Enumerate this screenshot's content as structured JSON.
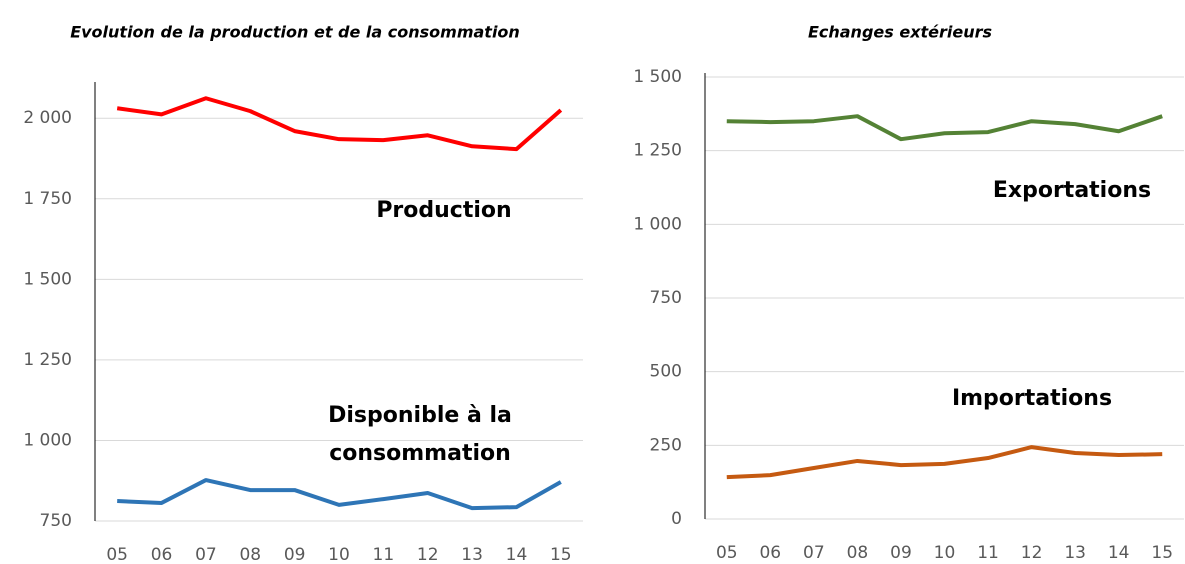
{
  "chart_data": [
    {
      "type": "line",
      "title": "Evolution de la production et de la consommation",
      "categories": [
        "05",
        "06",
        "07",
        "08",
        "09",
        "10",
        "11",
        "12",
        "13",
        "14",
        "15"
      ],
      "series": [
        {
          "name": "Production",
          "color": "#ff0000",
          "values": [
            2031,
            2012,
            2062,
            2022,
            1960,
            1935,
            1932,
            1947,
            1913,
            1904,
            2025
          ]
        },
        {
          "name": "Disponible à la consommation",
          "color": "#2e75b6",
          "values": [
            812,
            806,
            877,
            846,
            846,
            800,
            818,
            837,
            790,
            793,
            871
          ]
        }
      ],
      "ylim": [
        750,
        2100
      ],
      "yticks": [
        750,
        {
          "value": 1000,
          "label": "1 000"
        },
        {
          "value": 1250,
          "label": "1 250"
        },
        {
          "value": 1500,
          "label": "1 500"
        },
        {
          "value": 1750,
          "label": "1 750"
        },
        {
          "value": 2000,
          "label": "2 000"
        }
      ],
      "grid": true
    },
    {
      "type": "line",
      "title": "Echanges extérieurs",
      "categories": [
        "05",
        "06",
        "07",
        "08",
        "09",
        "10",
        "11",
        "12",
        "13",
        "14",
        "15"
      ],
      "series": [
        {
          "name": "Exportations",
          "color": "#548235",
          "values": [
            1350,
            1347,
            1350,
            1367,
            1289,
            1309,
            1313,
            1350,
            1340,
            1316,
            1367
          ]
        },
        {
          "name": "Importations",
          "color": "#c55a11",
          "values": [
            142,
            149,
            173,
            197,
            183,
            187,
            207,
            244,
            224,
            217,
            220
          ]
        }
      ],
      "ylim": [
        0,
        1500
      ],
      "yticks": [
        0,
        250,
        500,
        750,
        {
          "value": 1000,
          "label": "1 000"
        },
        {
          "value": 1250,
          "label": "1 250"
        },
        {
          "value": 1500,
          "label": "1 500"
        }
      ],
      "grid": true
    }
  ]
}
